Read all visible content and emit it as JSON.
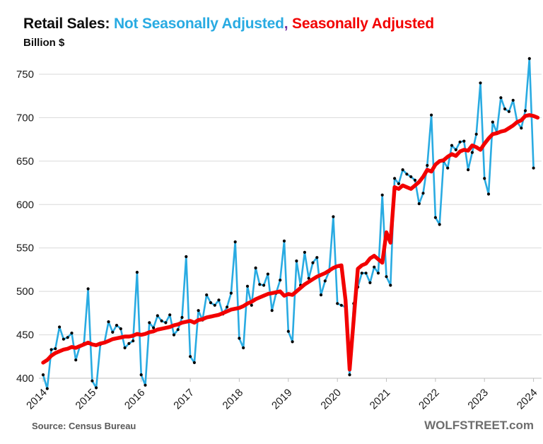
{
  "title": {
    "prefix": "Retail Sales: ",
    "nsa": "Not Seasonally Adjusted",
    "comma": ",",
    "sa": " Seasonally Adjusted"
  },
  "subtitle": "Billion $",
  "footer": {
    "source": "Source: Census Bureau",
    "brand": "WOLFSTREET.com"
  },
  "colors": {
    "nsa_line": "#29abe2",
    "sa_line": "#f20000",
    "marker": "#000000",
    "gridline": "#d9d9d9",
    "axis_line": "#bfbfbf",
    "tick_text": "#1a1a1a"
  },
  "chart_data": {
    "type": "line",
    "title": "Retail Sales: Not Seasonally Adjusted, Seasonally Adjusted",
    "ylabel": "Billion $",
    "ylim": [
      400,
      768
    ],
    "yticks": [
      400,
      450,
      500,
      550,
      600,
      650,
      700,
      750
    ],
    "xticks": [
      2014,
      2015,
      2016,
      2017,
      2018,
      2019,
      2020,
      2021,
      2022,
      2023,
      2024
    ],
    "x": {
      "start": "2014-01",
      "frequency": "monthly"
    },
    "grid": true,
    "legend_position": "in-title",
    "series": [
      {
        "name": "Not Seasonally Adjusted",
        "color": "#29abe2",
        "markers": true,
        "end": "2024-01",
        "values": [
          404,
          388,
          433,
          434,
          459,
          445,
          447,
          452,
          421,
          437,
          440,
          503,
          397,
          389,
          439,
          441,
          465,
          453,
          461,
          457,
          435,
          440,
          443,
          522,
          404,
          392,
          464,
          458,
          472,
          466,
          464,
          473,
          450,
          456,
          470,
          540,
          425,
          418,
          478,
          467,
          496,
          487,
          484,
          490,
          474,
          482,
          498,
          557,
          446,
          435,
          506,
          484,
          527,
          508,
          507,
          520,
          478,
          498,
          513,
          558,
          454,
          442,
          535,
          507,
          545,
          515,
          533,
          539,
          496,
          512,
          523,
          586,
          486,
          484,
          482,
          404,
          486,
          505,
          521,
          521,
          510,
          528,
          521,
          611,
          517,
          507,
          630,
          624,
          640,
          635,
          632,
          628,
          601,
          613,
          645,
          703,
          585,
          577,
          650,
          642,
          668,
          663,
          672,
          673,
          640,
          660,
          681,
          740,
          630,
          612,
          695,
          683,
          723,
          710,
          707,
          720,
          695,
          688,
          708,
          768,
          642
        ]
      },
      {
        "name": "Seasonally Adjusted",
        "color": "#f20000",
        "markers": false,
        "end": "2024-02",
        "values": [
          418,
          421,
          426,
          429,
          431,
          433,
          434,
          436,
          435,
          437,
          439,
          441,
          439,
          438,
          440,
          441,
          443,
          445,
          446,
          447,
          448,
          448,
          449,
          451,
          450,
          451,
          453,
          454,
          456,
          457,
          458,
          459,
          461,
          462,
          464,
          465,
          466,
          464,
          467,
          468,
          470,
          471,
          472,
          473,
          475,
          477,
          479,
          480,
          481,
          483,
          486,
          488,
          491,
          493,
          495,
          497,
          498,
          499,
          500,
          495,
          497,
          496,
          500,
          504,
          508,
          511,
          514,
          517,
          519,
          521,
          524,
          527,
          529,
          530,
          490,
          410,
          468,
          526,
          530,
          532,
          538,
          541,
          537,
          533,
          568,
          556,
          620,
          618,
          622,
          620,
          618,
          622,
          626,
          632,
          640,
          638,
          646,
          650,
          651,
          655,
          658,
          656,
          661,
          663,
          662,
          668,
          666,
          663,
          670,
          676,
          681,
          682,
          684,
          685,
          688,
          691,
          695,
          697,
          702,
          703,
          702,
          700
        ]
      }
    ]
  }
}
